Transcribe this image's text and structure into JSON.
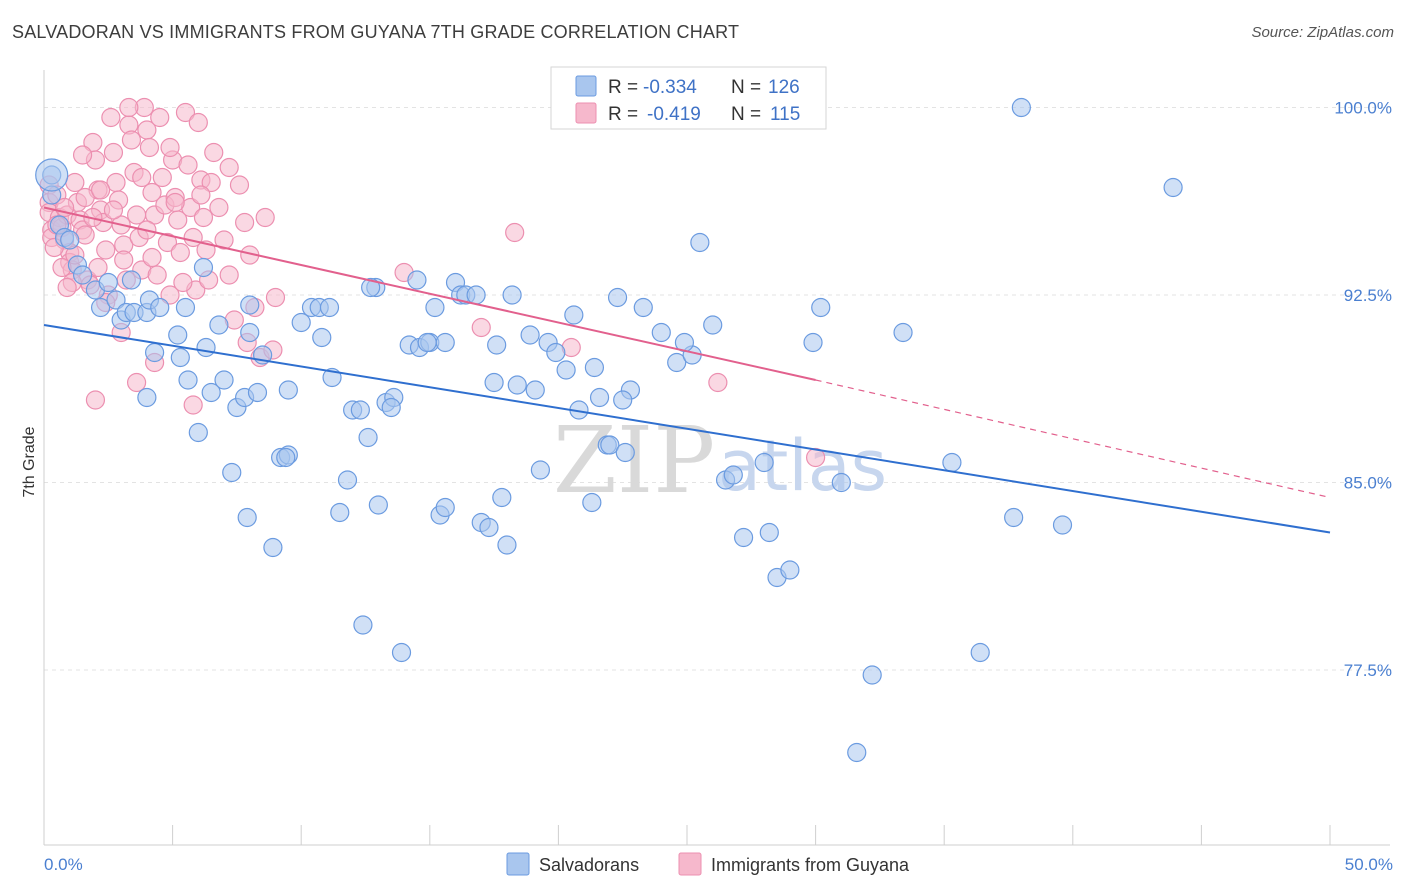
{
  "header": {
    "title": "SALVADORAN VS IMMIGRANTS FROM GUYANA 7TH GRADE CORRELATION CHART",
    "source": "Source: ZipAtlas.com"
  },
  "legend_box": {
    "rows": [
      {
        "r_label": "R = ",
        "r_value": "-0.334",
        "n_label": "N = ",
        "n_value": "126"
      },
      {
        "r_label": "R = ",
        "r_value": "-0.419",
        "n_label": "N = ",
        "n_value": "115"
      }
    ]
  },
  "watermark": {
    "zip": "ZIP",
    "atlas": "atlas"
  },
  "colors": {
    "blue_fill": "#a9c6ee",
    "blue_stroke": "#6b9be0",
    "blue_line": "#2f6fcf",
    "pink_fill": "#f6b8cc",
    "pink_stroke": "#ec8fb0",
    "pink_line": "#e2608d",
    "tick_text": "#4a7fd0",
    "grid": "#e3e3e3"
  },
  "chart_data": {
    "type": "scatter",
    "title": "SALVADORAN VS IMMIGRANTS FROM GUYANA 7TH GRADE CORRELATION CHART",
    "xlabel": "",
    "ylabel": "7th Grade",
    "xlim": [
      0,
      50
    ],
    "ylim": [
      70.5,
      101.5
    ],
    "x_tick_labels": [
      {
        "value": 0,
        "label": "0.0%"
      },
      {
        "value": 50,
        "label": "50.0%"
      }
    ],
    "y_tick_labels": [
      {
        "value": 100,
        "label": "100.0%"
      },
      {
        "value": 92.5,
        "label": "92.5%"
      },
      {
        "value": 85,
        "label": "85.0%"
      },
      {
        "value": 77.5,
        "label": "77.5%"
      }
    ],
    "grid": true,
    "legend_position": "bottom-center",
    "series": [
      {
        "name": "Salvadorans",
        "R": -0.334,
        "N": 126,
        "trend": {
          "x0": 0,
          "y0": 91.3,
          "x1": 50,
          "y1": 83.0
        },
        "points": [
          [
            0.3,
            97.3
          ],
          [
            0.3,
            96.5
          ],
          [
            0.6,
            95.3
          ],
          [
            0.8,
            94.8
          ],
          [
            1.0,
            94.7
          ],
          [
            1.3,
            93.7
          ],
          [
            1.5,
            93.3
          ],
          [
            2.0,
            92.7
          ],
          [
            2.2,
            92.0
          ],
          [
            2.8,
            92.3
          ],
          [
            3.0,
            91.5
          ],
          [
            3.2,
            91.8
          ],
          [
            3.5,
            91.8
          ],
          [
            4.0,
            91.8
          ],
          [
            4.1,
            92.3
          ],
          [
            3.4,
            93.1
          ],
          [
            4.3,
            90.2
          ],
          [
            4.0,
            88.4
          ],
          [
            5.2,
            90.9
          ],
          [
            5.5,
            92.0
          ],
          [
            5.6,
            89.1
          ],
          [
            6.0,
            87.0
          ],
          [
            6.3,
            90.4
          ],
          [
            6.5,
            88.6
          ],
          [
            6.8,
            91.3
          ],
          [
            7.0,
            89.1
          ],
          [
            7.3,
            85.4
          ],
          [
            7.5,
            88.0
          ],
          [
            7.8,
            88.4
          ],
          [
            8.0,
            92.1
          ],
          [
            8.3,
            88.6
          ],
          [
            8.5,
            90.1
          ],
          [
            7.9,
            83.6
          ],
          [
            8.9,
            82.4
          ],
          [
            9.2,
            86.0
          ],
          [
            9.5,
            86.1
          ],
          [
            9.5,
            88.7
          ],
          [
            10.0,
            91.4
          ],
          [
            10.4,
            92.0
          ],
          [
            10.7,
            92.0
          ],
          [
            10.8,
            90.8
          ],
          [
            11.2,
            89.2
          ],
          [
            11.5,
            83.8
          ],
          [
            11.8,
            85.1
          ],
          [
            12.0,
            87.9
          ],
          [
            12.3,
            87.9
          ],
          [
            12.4,
            79.3
          ],
          [
            12.6,
            86.8
          ],
          [
            12.9,
            92.8
          ],
          [
            13.0,
            84.1
          ],
          [
            13.3,
            88.2
          ],
          [
            13.6,
            88.4
          ],
          [
            13.9,
            78.2
          ],
          [
            14.2,
            90.5
          ],
          [
            14.5,
            93.1
          ],
          [
            14.6,
            90.4
          ],
          [
            15.0,
            90.6
          ],
          [
            15.2,
            92.0
          ],
          [
            15.4,
            83.7
          ],
          [
            15.6,
            84.0
          ],
          [
            16.0,
            93.0
          ],
          [
            16.2,
            92.5
          ],
          [
            16.4,
            92.5
          ],
          [
            16.8,
            92.5
          ],
          [
            17.0,
            83.4
          ],
          [
            17.3,
            83.2
          ],
          [
            17.5,
            89.0
          ],
          [
            17.8,
            84.4
          ],
          [
            18.0,
            82.5
          ],
          [
            18.2,
            92.5
          ],
          [
            18.4,
            88.9
          ],
          [
            18.9,
            90.9
          ],
          [
            19.3,
            85.5
          ],
          [
            19.6,
            90.6
          ],
          [
            19.9,
            90.2
          ],
          [
            20.3,
            89.5
          ],
          [
            20.8,
            87.9
          ],
          [
            21.3,
            84.2
          ],
          [
            21.6,
            88.4
          ],
          [
            21.9,
            86.5
          ],
          [
            22.0,
            86.5
          ],
          [
            22.3,
            92.4
          ],
          [
            22.6,
            86.2
          ],
          [
            22.8,
            88.7
          ],
          [
            23.3,
            92.0
          ],
          [
            24.0,
            91.0
          ],
          [
            24.6,
            89.8
          ],
          [
            25.2,
            90.1
          ],
          [
            25.5,
            94.6
          ],
          [
            26.5,
            85.1
          ],
          [
            26.8,
            85.3
          ],
          [
            27.2,
            82.8
          ],
          [
            28.0,
            85.8
          ],
          [
            28.2,
            83.0
          ],
          [
            28.5,
            81.2
          ],
          [
            29.0,
            81.5
          ],
          [
            29.9,
            90.6
          ],
          [
            30.2,
            92.0
          ],
          [
            31.0,
            85.0
          ],
          [
            31.6,
            74.2
          ],
          [
            32.2,
            77.3
          ],
          [
            33.4,
            91.0
          ],
          [
            35.3,
            85.8
          ],
          [
            36.4,
            78.2
          ],
          [
            37.7,
            83.6
          ],
          [
            38.0,
            100.0
          ],
          [
            39.6,
            83.3
          ],
          [
            43.9,
            96.8
          ],
          [
            22.5,
            88.3
          ],
          [
            26.0,
            91.3
          ],
          [
            11.1,
            92.0
          ],
          [
            14.9,
            90.6
          ],
          [
            5.3,
            90.0
          ],
          [
            6.2,
            93.6
          ],
          [
            8.0,
            91.0
          ],
          [
            2.5,
            93.0
          ],
          [
            15.6,
            90.6
          ],
          [
            20.6,
            91.7
          ],
          [
            9.4,
            86.0
          ],
          [
            12.7,
            92.8
          ],
          [
            24.9,
            90.6
          ],
          [
            4.5,
            92.0
          ],
          [
            13.5,
            88.0
          ],
          [
            17.6,
            90.5
          ],
          [
            19.1,
            88.7
          ],
          [
            21.4,
            89.6
          ]
        ]
      },
      {
        "name": "Immigrants from Guyana",
        "R": -0.419,
        "N": 115,
        "trend": {
          "x0": 0,
          "y0": 96.0,
          "x1": 30,
          "y1": 89.1
        },
        "trend_dashed_to": {
          "x": 50,
          "y": 84.4
        },
        "points": [
          [
            0.2,
            96.9
          ],
          [
            0.2,
            96.2
          ],
          [
            0.2,
            95.8
          ],
          [
            0.3,
            95.1
          ],
          [
            0.3,
            94.8
          ],
          [
            0.5,
            96.5
          ],
          [
            0.6,
            95.6
          ],
          [
            0.7,
            95.2
          ],
          [
            0.8,
            94.7
          ],
          [
            0.9,
            95.7
          ],
          [
            1.0,
            94.2
          ],
          [
            1.0,
            93.8
          ],
          [
            1.1,
            93.5
          ],
          [
            1.2,
            97.0
          ],
          [
            1.3,
            96.2
          ],
          [
            1.4,
            95.5
          ],
          [
            1.5,
            95.1
          ],
          [
            1.6,
            94.9
          ],
          [
            1.7,
            93.1
          ],
          [
            1.8,
            92.9
          ],
          [
            1.9,
            98.6
          ],
          [
            2.0,
            97.9
          ],
          [
            2.1,
            96.7
          ],
          [
            2.2,
            95.9
          ],
          [
            2.3,
            95.4
          ],
          [
            2.4,
            94.3
          ],
          [
            2.5,
            92.5
          ],
          [
            2.6,
            99.6
          ],
          [
            2.7,
            98.2
          ],
          [
            2.8,
            97.0
          ],
          [
            2.9,
            96.3
          ],
          [
            3.0,
            95.3
          ],
          [
            3.1,
            94.5
          ],
          [
            3.2,
            93.1
          ],
          [
            3.3,
            99.3
          ],
          [
            3.4,
            98.7
          ],
          [
            3.5,
            97.4
          ],
          [
            3.6,
            95.7
          ],
          [
            3.7,
            94.8
          ],
          [
            3.8,
            93.5
          ],
          [
            3.9,
            100.0
          ],
          [
            4.0,
            99.1
          ],
          [
            4.1,
            98.4
          ],
          [
            4.2,
            96.6
          ],
          [
            4.3,
            95.7
          ],
          [
            4.4,
            93.3
          ],
          [
            4.5,
            99.6
          ],
          [
            4.6,
            97.2
          ],
          [
            4.7,
            96.1
          ],
          [
            4.8,
            94.6
          ],
          [
            4.9,
            92.5
          ],
          [
            5.0,
            97.9
          ],
          [
            5.1,
            96.4
          ],
          [
            5.2,
            95.5
          ],
          [
            5.3,
            94.2
          ],
          [
            5.5,
            99.8
          ],
          [
            5.6,
            97.7
          ],
          [
            5.7,
            96.0
          ],
          [
            5.8,
            94.8
          ],
          [
            5.9,
            92.7
          ],
          [
            6.0,
            99.4
          ],
          [
            6.1,
            97.1
          ],
          [
            6.2,
            95.6
          ],
          [
            6.3,
            94.3
          ],
          [
            6.4,
            93.1
          ],
          [
            6.6,
            98.2
          ],
          [
            6.8,
            96.0
          ],
          [
            7.0,
            94.7
          ],
          [
            7.2,
            93.3
          ],
          [
            7.4,
            91.5
          ],
          [
            7.6,
            96.9
          ],
          [
            7.8,
            95.4
          ],
          [
            8.0,
            94.1
          ],
          [
            8.2,
            92.0
          ],
          [
            8.4,
            90.0
          ],
          [
            8.6,
            95.6
          ],
          [
            8.9,
            90.3
          ],
          [
            9.0,
            92.4
          ],
          [
            3.0,
            91.0
          ],
          [
            2.0,
            88.3
          ],
          [
            3.6,
            89.0
          ],
          [
            4.3,
            89.8
          ],
          [
            17.0,
            91.2
          ],
          [
            14.0,
            93.4
          ],
          [
            18.3,
            95.0
          ],
          [
            20.5,
            90.4
          ],
          [
            26.2,
            89.0
          ],
          [
            30.0,
            86.0
          ],
          [
            5.8,
            88.1
          ],
          [
            1.2,
            94.1
          ],
          [
            0.5,
            95.3
          ],
          [
            0.8,
            96.0
          ],
          [
            1.5,
            98.1
          ],
          [
            2.1,
            93.6
          ],
          [
            3.3,
            100.0
          ],
          [
            4.9,
            98.4
          ],
          [
            6.5,
            97.0
          ],
          [
            7.2,
            97.6
          ],
          [
            1.9,
            95.6
          ],
          [
            2.4,
            92.2
          ],
          [
            0.4,
            94.4
          ],
          [
            1.1,
            93.0
          ],
          [
            2.7,
            95.9
          ],
          [
            3.8,
            97.2
          ],
          [
            5.1,
            96.2
          ],
          [
            6.1,
            96.5
          ],
          [
            0.9,
            92.8
          ],
          [
            1.6,
            96.4
          ],
          [
            4.2,
            94.0
          ],
          [
            5.4,
            93.0
          ],
          [
            7.9,
            90.6
          ],
          [
            2.2,
            96.7
          ],
          [
            3.1,
            93.9
          ],
          [
            4.0,
            95.1
          ],
          [
            0.7,
            93.6
          ]
        ]
      }
    ]
  }
}
